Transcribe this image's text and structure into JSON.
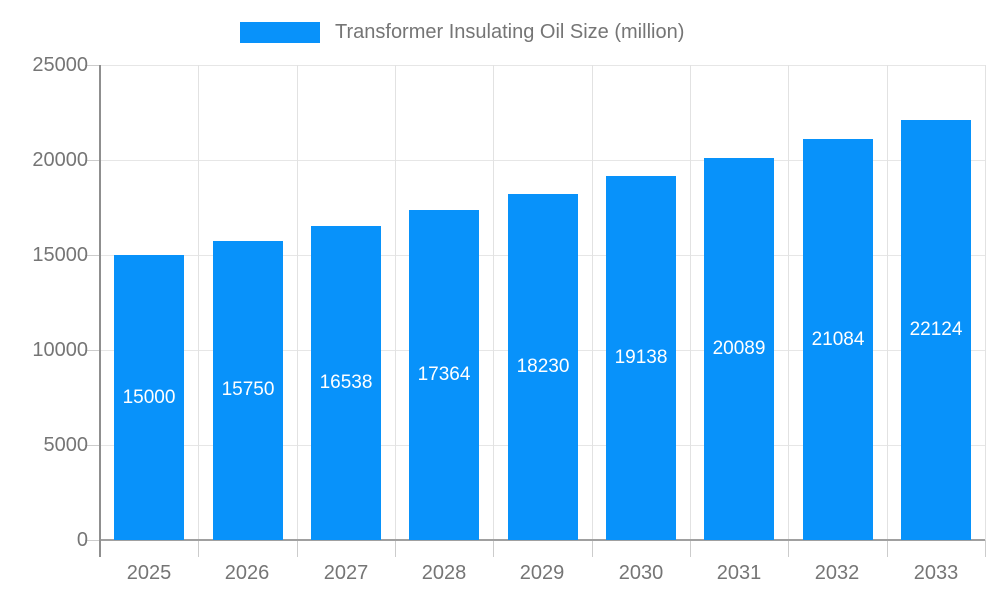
{
  "legend": {
    "label": "Transformer Insulating Oil Size (million)",
    "swatch_color": "#0892fa"
  },
  "colors": {
    "bar": "#0892fa",
    "data_label": "#ffffff",
    "axis_text": "#757575",
    "axis_line": "#8f8f8f",
    "gridline": "#e6e6e6",
    "background": "#ffffff"
  },
  "chart_data": {
    "type": "bar",
    "title": "",
    "series_name": "Transformer Insulating Oil Size (million)",
    "categories": [
      "2025",
      "2026",
      "2027",
      "2028",
      "2029",
      "2030",
      "2031",
      "2032",
      "2033"
    ],
    "values": [
      15000,
      15750,
      16538,
      17364,
      18230,
      19138,
      20089,
      21084,
      22124
    ],
    "data_labels": [
      "15000",
      "15750",
      "16538",
      "17364",
      "18230",
      "19138",
      "20089",
      "21084",
      "22124"
    ],
    "y_ticks": [
      0,
      5000,
      10000,
      15000,
      20000,
      25000
    ],
    "y_tick_labels": [
      "0",
      "5000",
      "10000",
      "15000",
      "20000",
      "25000"
    ],
    "ylim": [
      0,
      25000
    ],
    "xlabel": "",
    "ylabel": "",
    "grid": true,
    "legend_position": "top-center",
    "bar_color": "#0892fa",
    "data_label_color": "#ffffff"
  }
}
